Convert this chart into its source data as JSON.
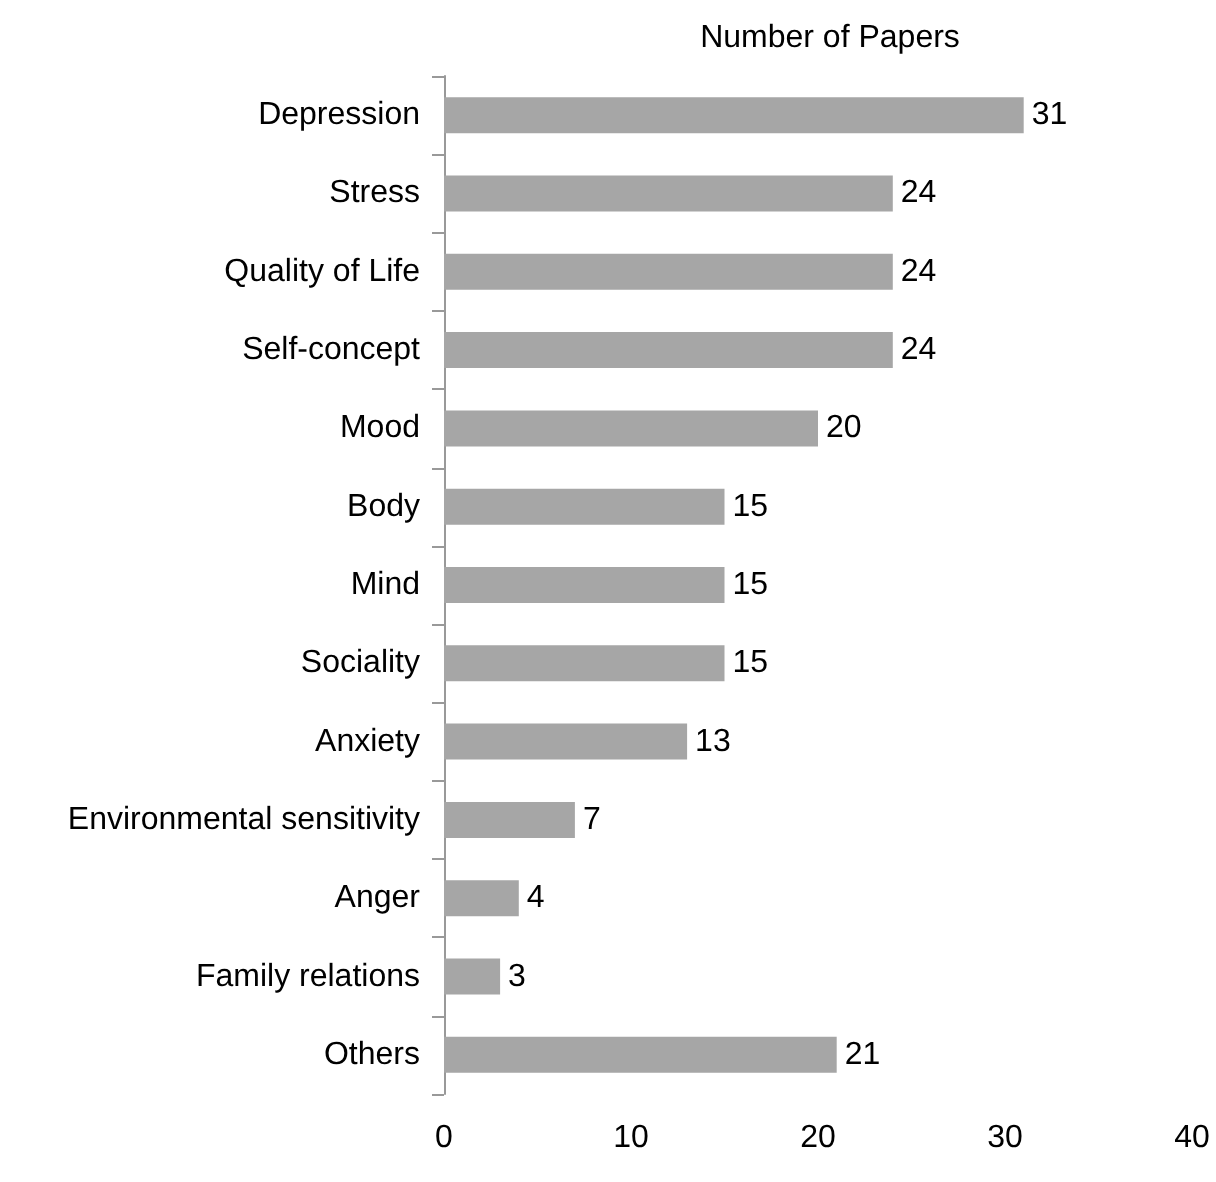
{
  "chart_data": {
    "type": "bar",
    "orientation": "horizontal",
    "title": "Number of Papers",
    "categories": [
      "Depression",
      "Stress",
      "Quality of Life",
      "Self-concept",
      "Mood",
      "Body",
      "Mind",
      "Sociality",
      "Anxiety",
      "Environmental sensitivity",
      "Anger",
      "Family relations",
      "Others"
    ],
    "values": [
      31,
      24,
      24,
      24,
      20,
      15,
      15,
      15,
      13,
      7,
      4,
      3,
      21
    ],
    "color": "#a6a6a6",
    "xlim": [
      0,
      40
    ],
    "xticks": [
      0,
      10,
      20,
      30,
      40
    ],
    "grid": false,
    "data_labels": true
  }
}
